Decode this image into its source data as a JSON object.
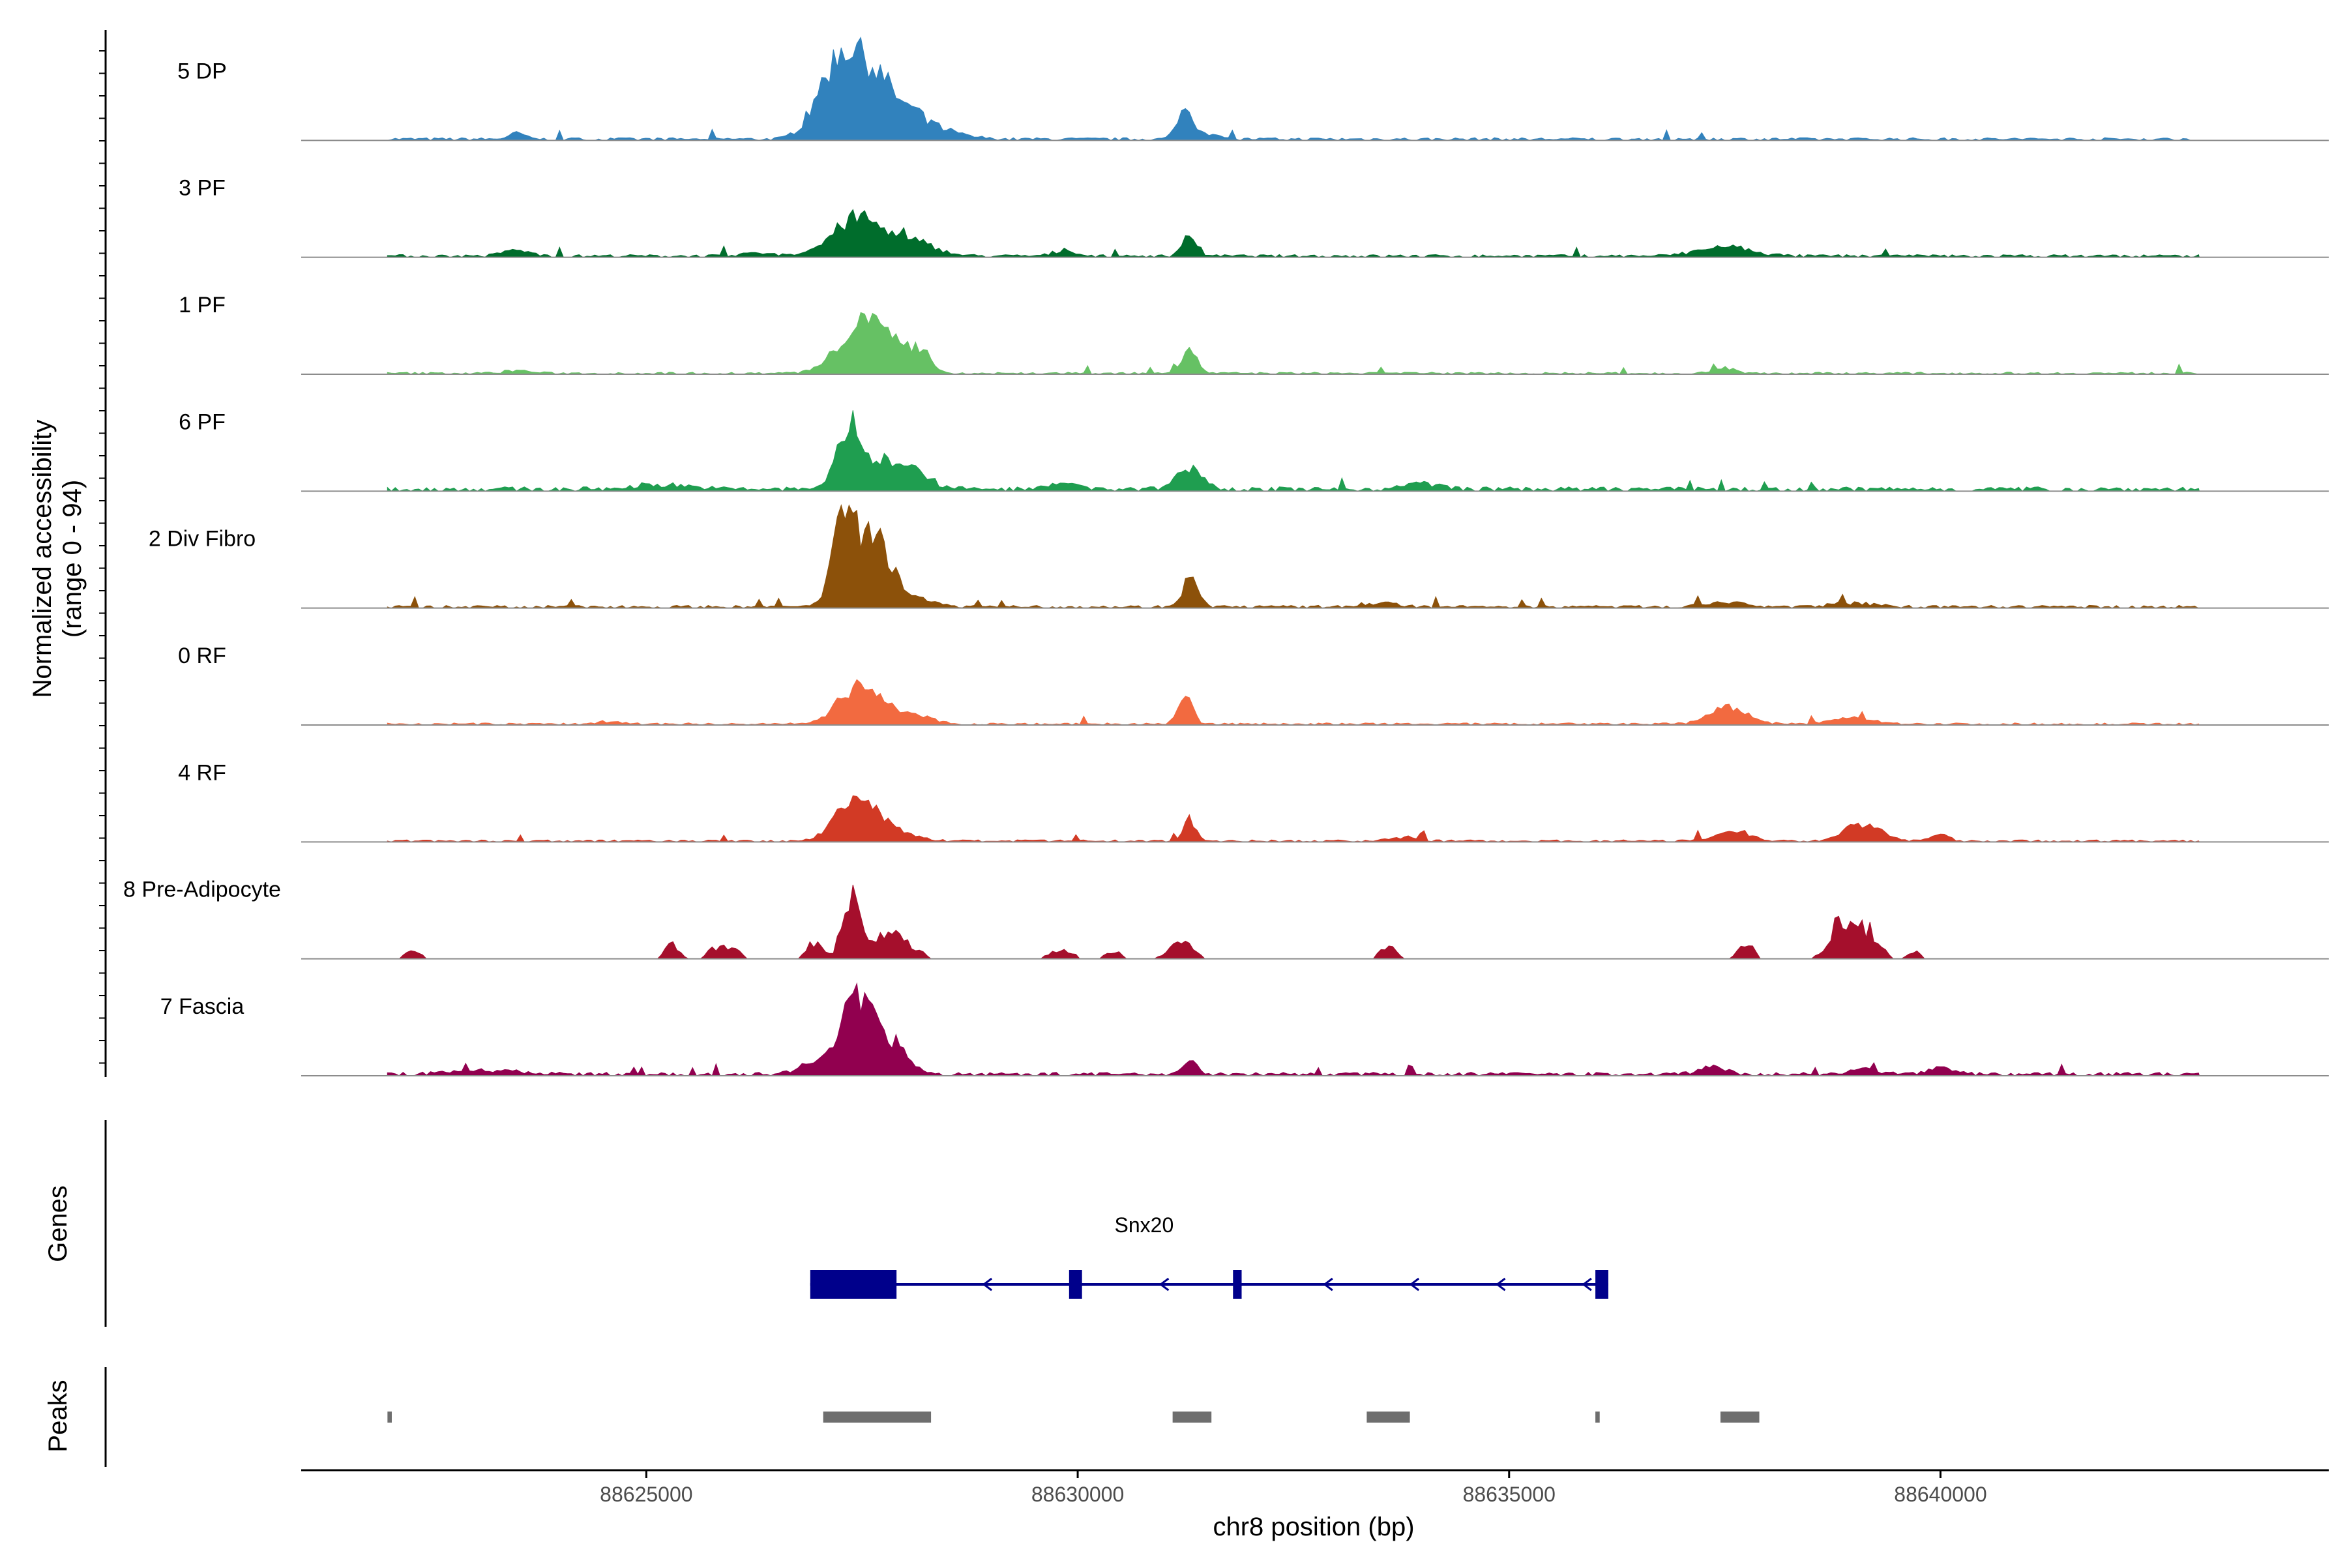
{
  "chart_data": {
    "type": "area",
    "subtype": "coverage-track",
    "ylabel_line1": "Normalized accessibility",
    "ylabel_line2": "(range 0 - 94)",
    "yrange": [
      0,
      94
    ],
    "xlabel": "chr8 position (bp)",
    "xlim": [
      88621000,
      88644500
    ],
    "x_ticks": [
      88625000,
      88630000,
      88635000,
      88640000
    ],
    "x_tick_labels": [
      "88625000",
      "88630000",
      "88635000",
      "88640000"
    ],
    "genes_label": "Genes",
    "peaks_label": "Peaks",
    "tracks": [
      {
        "name": "5 DP",
        "color": "#3182bd",
        "sparse": false,
        "peaks": [
          [
            88627450,
            75,
            260
          ],
          [
            88627150,
            35,
            200
          ],
          [
            88627900,
            22,
            250
          ],
          [
            88628300,
            10,
            300
          ],
          [
            88626900,
            6,
            150
          ],
          [
            88631250,
            30,
            90
          ],
          [
            88631500,
            6,
            120
          ],
          [
            88623500,
            6,
            90
          ]
        ],
        "baseline": 1.6
      },
      {
        "name": "3 PF",
        "color": "#006d2c",
        "sparse": false,
        "peaks": [
          [
            88627450,
            38,
            280
          ],
          [
            88628100,
            14,
            250
          ],
          [
            88631300,
            22,
            80
          ],
          [
            88637500,
            9,
            300
          ],
          [
            88623500,
            6,
            150
          ],
          [
            88629850,
            6,
            120
          ],
          [
            88626300,
            3,
            200
          ]
        ],
        "baseline": 1.6
      },
      {
        "name": "1 PF",
        "color": "#66c164",
        "sparse": false,
        "peaks": [
          [
            88627500,
            48,
            260
          ],
          [
            88627900,
            25,
            150
          ],
          [
            88628200,
            18,
            110
          ],
          [
            88631300,
            25,
            80
          ],
          [
            88637500,
            6,
            120
          ],
          [
            88623500,
            3,
            150
          ]
        ],
        "baseline": 1.2
      },
      {
        "name": "6 PF",
        "color": "#1f9e50",
        "sparse": false,
        "peaks": [
          [
            88627350,
            58,
            140
          ],
          [
            88627750,
            26,
            200
          ],
          [
            88628100,
            16,
            200
          ],
          [
            88631300,
            22,
            150
          ],
          [
            88629800,
            6,
            200
          ],
          [
            88634000,
            6,
            200
          ],
          [
            88625200,
            5,
            300
          ]
        ],
        "baseline": 2.5
      },
      {
        "name": "2 Div Fibro",
        "color": "#8c510a",
        "sparse": false,
        "peaks": [
          [
            88627300,
            90,
            130
          ],
          [
            88627650,
            62,
            170
          ],
          [
            88628000,
            12,
            250
          ],
          [
            88631300,
            28,
            90
          ],
          [
            88633500,
            4,
            200
          ],
          [
            88637500,
            4,
            250
          ],
          [
            88639000,
            4,
            250
          ]
        ],
        "baseline": 1.6
      },
      {
        "name": "0 RF",
        "color": "#f26a40",
        "sparse": false,
        "peaks": [
          [
            88627400,
            32,
            200
          ],
          [
            88627750,
            16,
            200
          ],
          [
            88628200,
            8,
            150
          ],
          [
            88631250,
            30,
            80
          ],
          [
            88637550,
            16,
            220
          ],
          [
            88639000,
            6,
            250
          ],
          [
            88624600,
            3,
            150
          ]
        ],
        "baseline": 1.2
      },
      {
        "name": "4 RF",
        "color": "#d23a25",
        "sparse": false,
        "peaks": [
          [
            88627350,
            30,
            200
          ],
          [
            88627650,
            22,
            180
          ],
          [
            88628000,
            6,
            200
          ],
          [
            88631300,
            22,
            70
          ],
          [
            88637600,
            10,
            200
          ],
          [
            88639100,
            18,
            200
          ],
          [
            88640000,
            6,
            100
          ],
          [
            88633800,
            4,
            150
          ]
        ],
        "baseline": 1.2
      },
      {
        "name": "8 Pre-Adipocyte",
        "color": "#a50f2c",
        "sparse": true,
        "peaks": [
          [
            88627350,
            55,
            90
          ],
          [
            88627650,
            25,
            200
          ],
          [
            88628000,
            14,
            150
          ],
          [
            88626950,
            18,
            80
          ],
          [
            88625300,
            18,
            80
          ],
          [
            88625900,
            15,
            150
          ],
          [
            88631200,
            16,
            150
          ],
          [
            88633600,
            16,
            80
          ],
          [
            88637750,
            15,
            90
          ],
          [
            88638850,
            38,
            140
          ],
          [
            88639150,
            28,
            140
          ],
          [
            88639700,
            8,
            80
          ],
          [
            88629800,
            10,
            130
          ],
          [
            88630400,
            8,
            100
          ],
          [
            88621800,
            7,
            100
          ],
          [
            88622300,
            7,
            100
          ]
        ],
        "baseline": 0
      },
      {
        "name": "7 Fascia",
        "color": "#91004f",
        "sparse": false,
        "peaks": [
          [
            88627350,
            60,
            160
          ],
          [
            88627600,
            38,
            160
          ],
          [
            88627900,
            25,
            160
          ],
          [
            88626900,
            10,
            150
          ],
          [
            88631300,
            12,
            90
          ],
          [
            88637350,
            8,
            150
          ],
          [
            88639100,
            6,
            150
          ],
          [
            88640000,
            6,
            150
          ],
          [
            88623200,
            4,
            400
          ]
        ],
        "baseline": 2.0
      }
    ],
    "gene": {
      "name": "Snx20",
      "strand": "-",
      "start": 88626900,
      "end": 88636150,
      "exons": [
        [
          88626900,
          88627900,
          "utr_big"
        ],
        [
          88629900,
          88630050,
          "exon"
        ],
        [
          88631800,
          88631900,
          "exon"
        ],
        [
          88636000,
          88636150,
          "exon"
        ]
      ],
      "arrows": [
        88628950,
        88631000,
        88632900,
        88633900,
        88634900,
        88635900
      ]
    },
    "peak_regions": [
      [
        88622000,
        88622050
      ],
      [
        88627050,
        88628300
      ],
      [
        88631100,
        88631550
      ],
      [
        88633350,
        88633850
      ],
      [
        88636000,
        88636050
      ],
      [
        88637450,
        88637900
      ]
    ]
  }
}
